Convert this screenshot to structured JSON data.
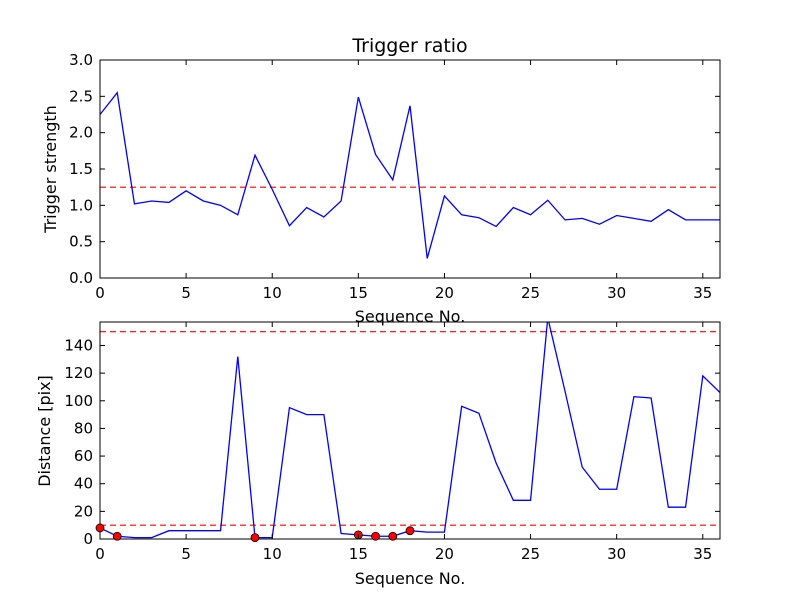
{
  "chart_data": [
    {
      "type": "line",
      "title": "Trigger ratio",
      "xlabel": "Sequence No.",
      "ylabel": "Trigger strength",
      "xlim": [
        0,
        36
      ],
      "ylim": [
        0,
        3.0
      ],
      "xticks": [
        "0",
        "5",
        "10",
        "15",
        "20",
        "25",
        "30",
        "35"
      ],
      "yticks": [
        "0.0",
        "0.5",
        "1.0",
        "1.5",
        "2.0",
        "2.5",
        "3.0"
      ],
      "series": [
        {
          "color": "#0000ff",
          "x": [
            0,
            1,
            2,
            3,
            4,
            5,
            6,
            7,
            8,
            9,
            10,
            11,
            12,
            13,
            14,
            15,
            16,
            17,
            18,
            19,
            20,
            21,
            22,
            23,
            24,
            25,
            26,
            27,
            28,
            29,
            30,
            31,
            32,
            33,
            34,
            35,
            36
          ],
          "y": [
            2.25,
            2.55,
            1.02,
            1.06,
            1.04,
            1.2,
            1.06,
            1.0,
            0.87,
            1.69,
            1.22,
            0.72,
            0.97,
            0.84,
            1.06,
            2.49,
            1.7,
            1.35,
            2.37,
            0.27,
            1.13,
            0.87,
            0.83,
            0.71,
            0.97,
            0.87,
            1.07,
            0.8,
            0.82,
            0.74,
            0.86,
            0.82,
            0.78,
            0.94,
            0.8,
            0.8,
            0.8
          ]
        }
      ],
      "hlines": [
        {
          "y": 1.25,
          "color": "#ff0000",
          "style": "dashed"
        }
      ]
    },
    {
      "type": "line",
      "title": "",
      "xlabel": "Sequence No.",
      "ylabel": "Distance [pix]",
      "xlim": [
        0,
        36
      ],
      "ylim": [
        0,
        157
      ],
      "xticks": [
        "0",
        "5",
        "10",
        "15",
        "20",
        "25",
        "30",
        "35"
      ],
      "yticks": [
        "0",
        "20",
        "40",
        "60",
        "80",
        "100",
        "120",
        "140"
      ],
      "series": [
        {
          "color": "#0000ff",
          "x": [
            0,
            1,
            2,
            3,
            4,
            5,
            6,
            7,
            8,
            9,
            10,
            11,
            12,
            13,
            14,
            15,
            16,
            17,
            18,
            19,
            20,
            21,
            22,
            23,
            24,
            25,
            26,
            27,
            28,
            29,
            30,
            31,
            32,
            33,
            34,
            35,
            36
          ],
          "y": [
            8,
            2,
            1,
            1,
            6,
            6,
            6,
            6,
            132,
            1,
            1,
            95,
            90,
            90,
            4,
            3,
            2,
            2,
            6,
            5,
            5,
            96,
            91,
            55,
            28,
            28,
            160,
            107,
            52,
            36,
            36,
            103,
            102,
            23,
            23,
            118,
            106
          ]
        }
      ],
      "markers": {
        "color": "#ff0000",
        "x": [
          0,
          1,
          9,
          15,
          16,
          17,
          18
        ],
        "y": [
          8,
          2,
          1,
          3,
          2,
          2,
          6
        ]
      },
      "hlines": [
        {
          "y": 150,
          "color": "#ff0000",
          "style": "dashed"
        },
        {
          "y": 10,
          "color": "#ff0000",
          "style": "dashed"
        }
      ]
    }
  ]
}
